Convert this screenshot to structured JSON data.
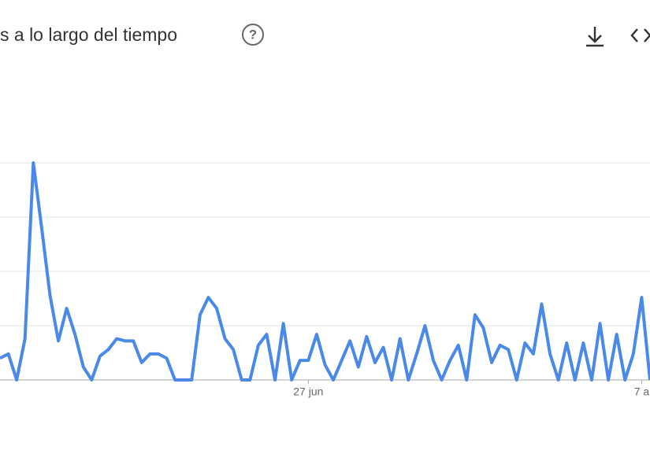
{
  "chart_data": {
    "type": "line",
    "title": "s a lo largo del tiempo",
    "categories": [
      null,
      null,
      null,
      null,
      null,
      null,
      null,
      null,
      null,
      null,
      null,
      null,
      null,
      null,
      null,
      null,
      null,
      null,
      null,
      null,
      null,
      null,
      null,
      null,
      null,
      null,
      null,
      null,
      null,
      null,
      null,
      null,
      null,
      null,
      null,
      null,
      null,
      "27 jun",
      null,
      null,
      null,
      null,
      null,
      null,
      null,
      null,
      null,
      null,
      null,
      null,
      null,
      null,
      null,
      null,
      null,
      null,
      null,
      null,
      null,
      null,
      null,
      null,
      null,
      null,
      null,
      null,
      null,
      null,
      null,
      null,
      null,
      null,
      null,
      null,
      null,
      null,
      null,
      "7 a",
      null
    ],
    "series": [
      {
        "color": "#4a89e8",
        "values": [
          10,
          12,
          0,
          19,
          100,
          70,
          39,
          18,
          33,
          21,
          6,
          0,
          11,
          14,
          19,
          18,
          18,
          8,
          12,
          12,
          10,
          0,
          0,
          0,
          30,
          38,
          33,
          19,
          14,
          0,
          0,
          16,
          21,
          0,
          26,
          0,
          9,
          9,
          21,
          7,
          0,
          9,
          18,
          6,
          20,
          8,
          15,
          0,
          19,
          0,
          12,
          25,
          9,
          0,
          9,
          16,
          0,
          30,
          24,
          8,
          16,
          14,
          0,
          17,
          12,
          35,
          12,
          0,
          17,
          0,
          17,
          0,
          26,
          0,
          21,
          0,
          12,
          38,
          0
        ]
      }
    ],
    "ylim": [
      0,
      100
    ],
    "yticks": [
      0,
      25,
      50,
      75,
      100
    ],
    "grid": true
  }
}
